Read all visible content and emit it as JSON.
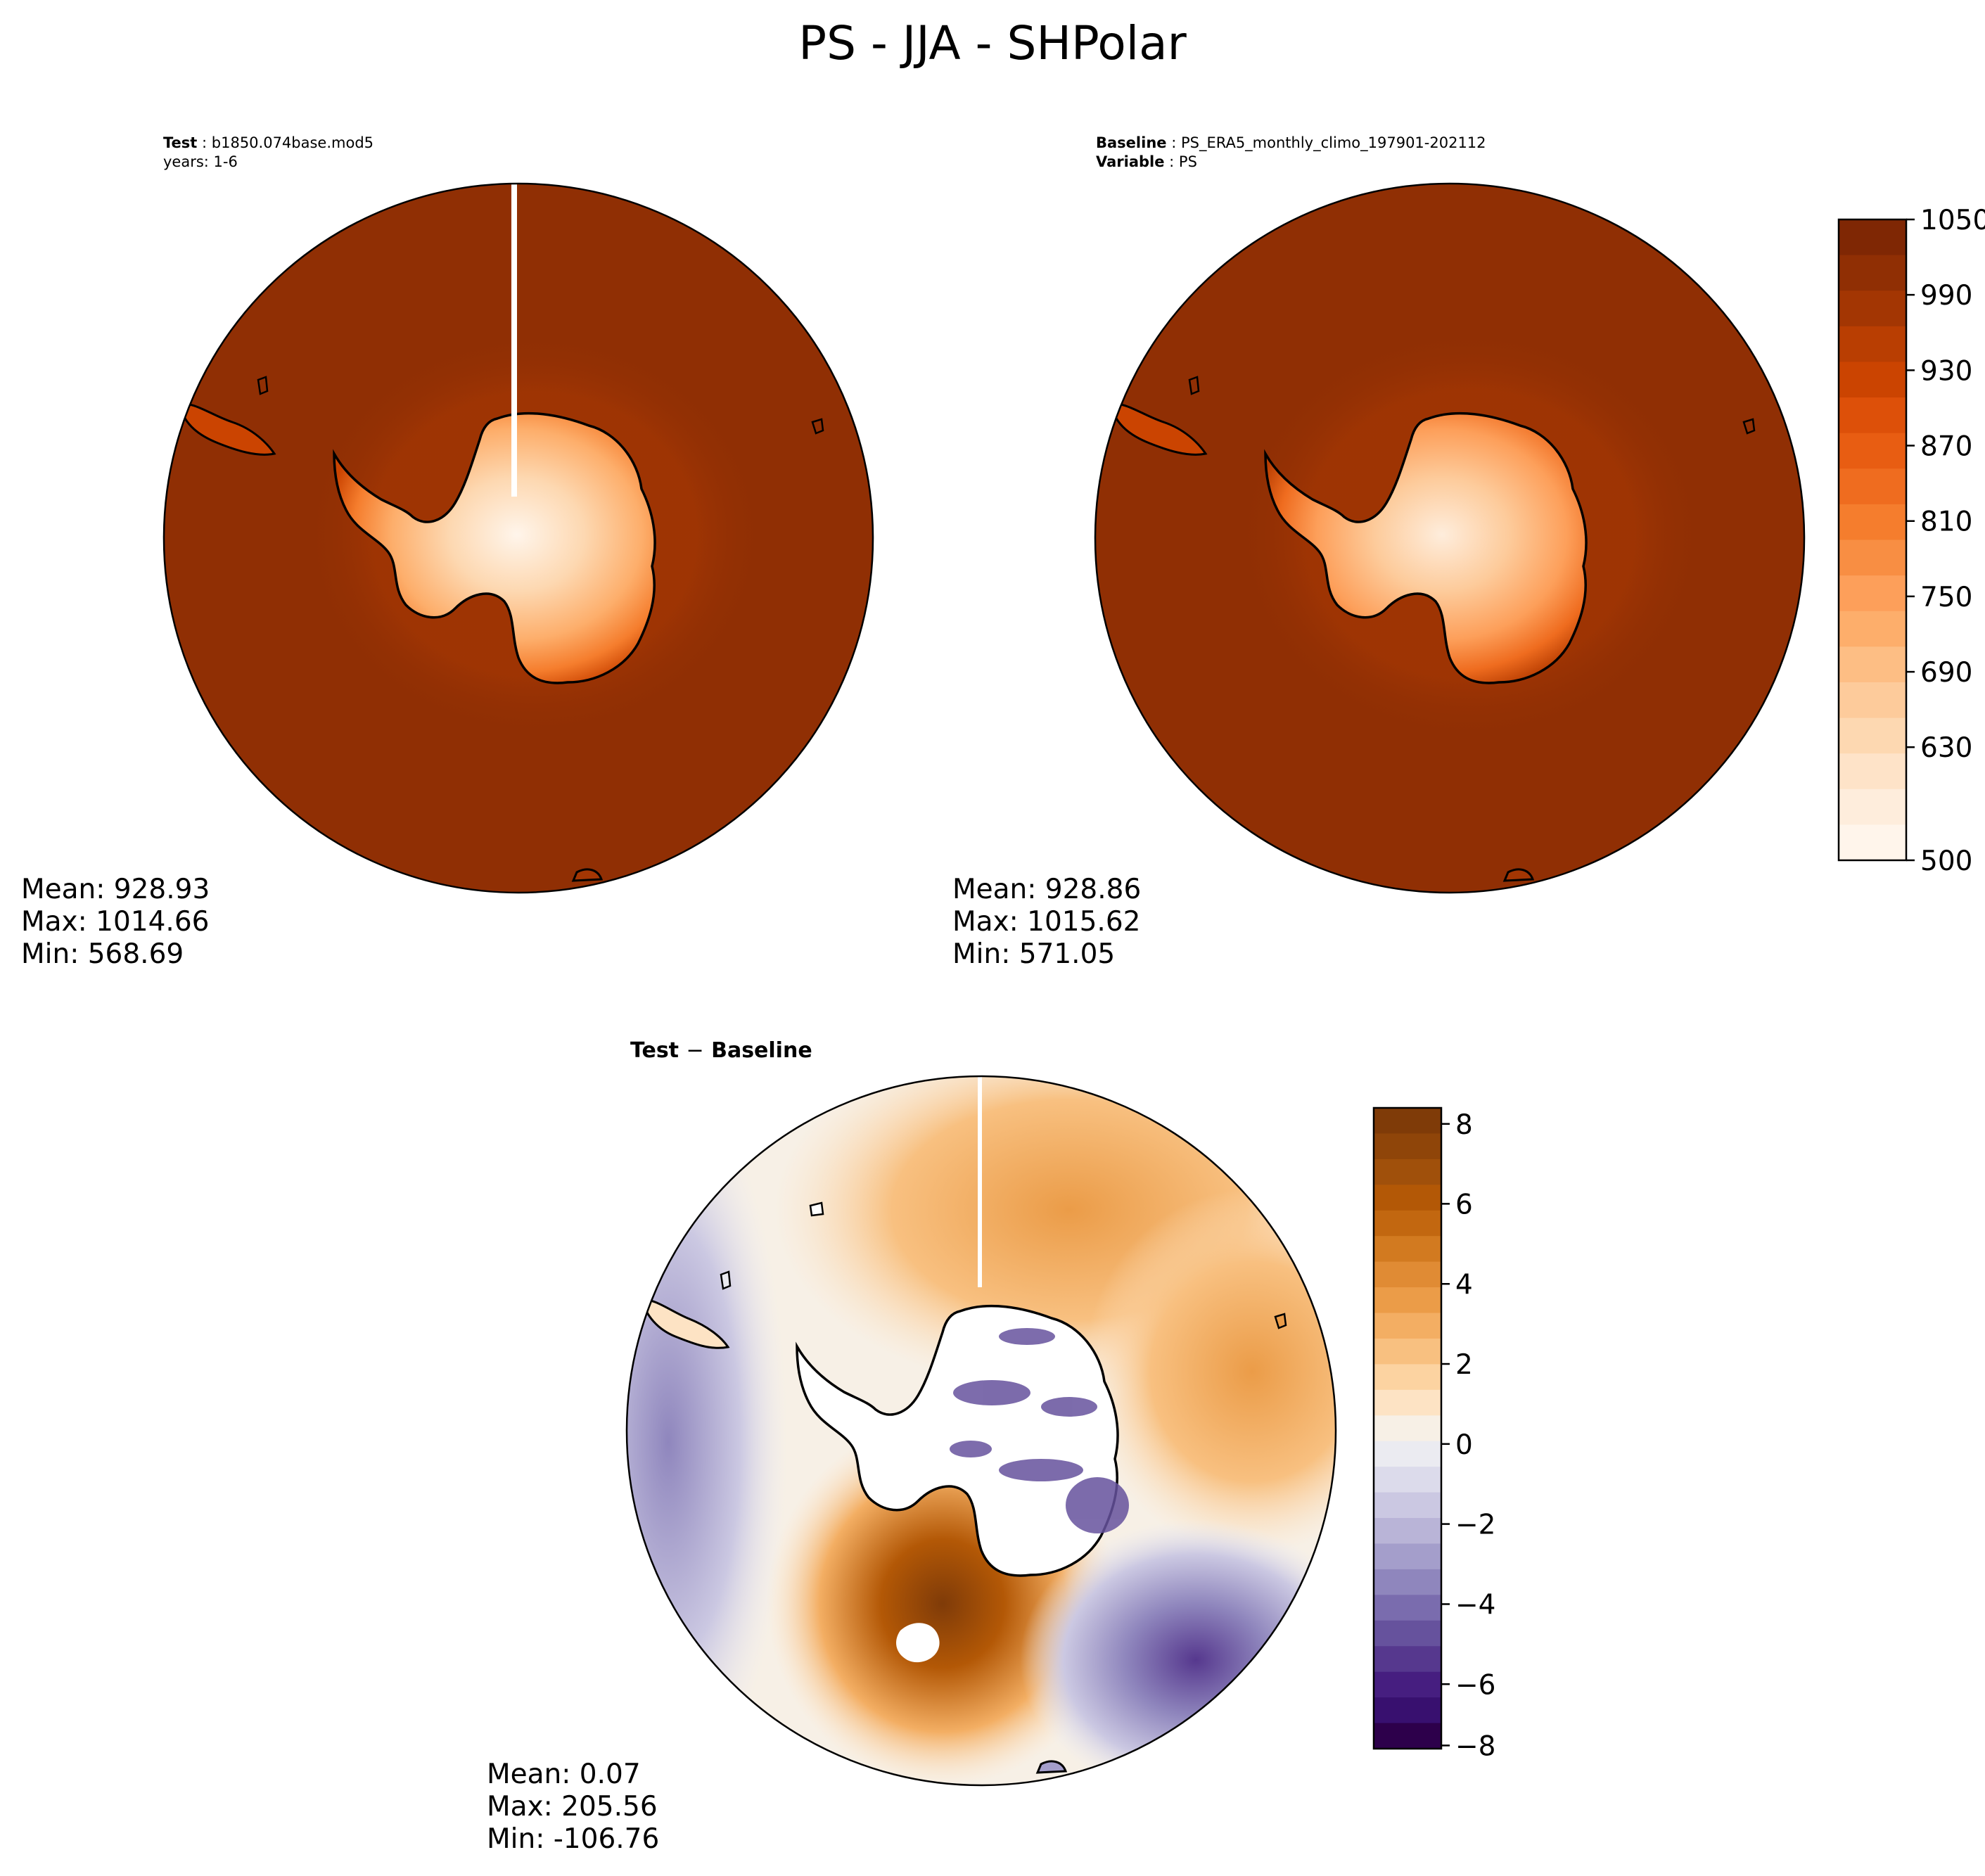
{
  "figure": {
    "title": "PS - JJA - SHPolar"
  },
  "test_panel": {
    "case_key": "Test",
    "case_value": "b1850.074base.mod5",
    "years": "years: 1-6",
    "stats": {
      "mean": "Mean: 928.93",
      "max": "Max: 1014.66",
      "min": "Min: 568.69"
    }
  },
  "baseline_panel": {
    "case_key": "Baseline",
    "case_value": "PS_ERA5_monthly_climo_197901-202112",
    "var_key": "Variable",
    "var_value": "PS",
    "stats": {
      "mean": "Mean: 928.86",
      "max": "Max: 1015.62",
      "min": "Min: 571.05"
    }
  },
  "diff_panel": {
    "title_a": "Test",
    "title_op": "−",
    "title_b": "Baseline",
    "stats": {
      "mean": "Mean:  0.07",
      "max": "Max: 205.56",
      "min": "Min: -106.76"
    }
  },
  "colorbar_main": {
    "colormap": "Oranges",
    "ticks": [
      "1050",
      "990",
      "930",
      "870",
      "810",
      "750",
      "690",
      "630",
      "500"
    ],
    "colors": [
      "#7f2704",
      "#902f04",
      "#a33603",
      "#b93e02",
      "#cb4401",
      "#dd5009",
      "#e85d12",
      "#ef6c1f",
      "#f57d2d",
      "#f88e43",
      "#fd9f5a",
      "#fdae6b",
      "#fdbe84",
      "#fdcb9b",
      "#fdd8b1",
      "#fee3c8",
      "#feeddc",
      "#fff5eb"
    ]
  },
  "colorbar_diff": {
    "colormap": "PuOr",
    "ticks": [
      "8",
      "6",
      "4",
      "2",
      "0",
      "−2",
      "−4",
      "−6",
      "−8"
    ],
    "colors": [
      "#7f3b08",
      "#8f4509",
      "#a0500b",
      "#b35806",
      "#c26710",
      "#d27a20",
      "#e08b34",
      "#eb9c48",
      "#f3ae63",
      "#f8c080",
      "#fcd3a1",
      "#fde3c4",
      "#f7f0e6",
      "#ebebf1",
      "#dcdbeb",
      "#cbc8e2",
      "#b9b4d7",
      "#a49ecb",
      "#8f86bd",
      "#7a6cae",
      "#66529d",
      "#56388e",
      "#461e80",
      "#38106f",
      "#2d004b"
    ]
  }
}
